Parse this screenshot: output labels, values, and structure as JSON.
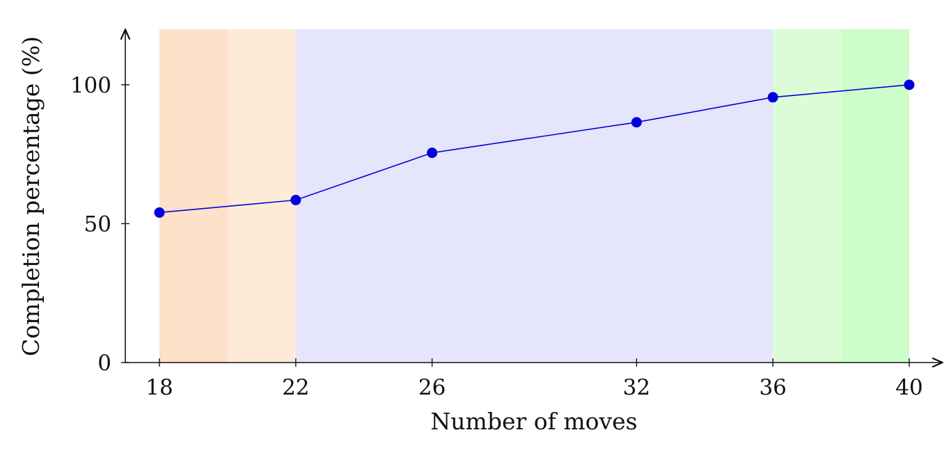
{
  "chart_data": {
    "type": "line",
    "title": "",
    "xlabel": "Number of moves",
    "ylabel": "Completion percentage (%)",
    "x_ticks": [
      18,
      22,
      26,
      32,
      36,
      40
    ],
    "y_ticks": [
      0,
      50,
      100
    ],
    "xlim": [
      18,
      40
    ],
    "ylim": [
      0,
      120
    ],
    "grid": false,
    "series": [
      {
        "color": "#0000dd",
        "marker": "circle",
        "points": [
          {
            "x": 18,
            "y": 54
          },
          {
            "x": 22,
            "y": 58.5
          },
          {
            "x": 26,
            "y": 75.5
          },
          {
            "x": 32,
            "y": 86.5
          },
          {
            "x": 36,
            "y": 95.5
          },
          {
            "x": 40,
            "y": 100
          }
        ]
      }
    ],
    "shaded_regions": [
      {
        "x_from": 18,
        "x_to": 20,
        "color": "#fde1c8"
      },
      {
        "x_from": 20,
        "x_to": 22,
        "color": "#feebd7"
      },
      {
        "x_from": 22,
        "x_to": 36,
        "color": "#e5e5fb"
      },
      {
        "x_from": 36,
        "x_to": 38,
        "color": "#dbfcd6"
      },
      {
        "x_from": 38,
        "x_to": 40,
        "color": "#cdfdc9"
      }
    ]
  }
}
